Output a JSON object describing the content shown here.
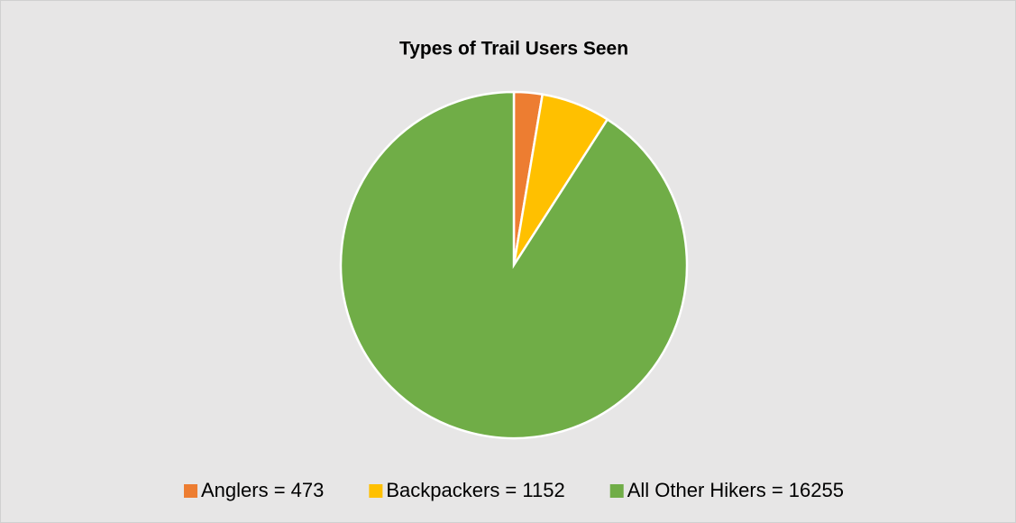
{
  "chart_data": {
    "type": "pie",
    "title": "Types of Trail Users Seen",
    "categories": [
      "Anglers = 473",
      "Backpackers = 1152",
      "All Other Hikers = 16255"
    ],
    "values": [
      473,
      1152,
      16255
    ],
    "colors": [
      "#ed7d31",
      "#ffc000",
      "#70ad47"
    ],
    "legend": "bottom"
  }
}
